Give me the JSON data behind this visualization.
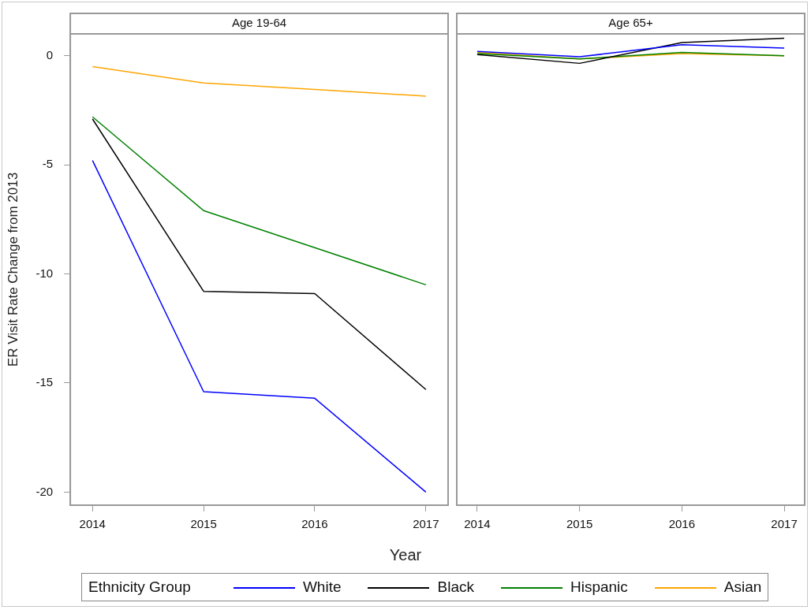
{
  "chart_data": [
    {
      "type": "line",
      "title": "Age 19-64",
      "xlabel": "Year",
      "ylabel": "ER Visit Rate Change from 2013",
      "legend_title": "Ethnicity Group",
      "legend": "bottom",
      "grid": false,
      "marker": "none",
      "x": [
        2014,
        2015,
        2016,
        2017
      ],
      "xlim": [
        2013.8,
        2017.2
      ],
      "xticks": [
        2014,
        2015,
        2016,
        2017
      ],
      "ylim": [
        -20.6,
        1.0
      ],
      "yticks": [
        -20,
        -15,
        -10,
        -5,
        0
      ],
      "series": [
        {
          "name": "White",
          "color": "#0000ff",
          "values": [
            -4.8,
            -15.4,
            -15.7,
            -20.0
          ]
        },
        {
          "name": "Black",
          "color": "#000000",
          "values": [
            -2.9,
            -10.8,
            -10.9,
            -15.3
          ]
        },
        {
          "name": "Hispanic",
          "color": "#008000",
          "values": [
            -2.8,
            -7.1,
            -8.8,
            -10.5
          ]
        },
        {
          "name": "Asian",
          "color": "#ffa500",
          "values": [
            -0.5,
            -1.25,
            -1.55,
            -1.85
          ]
        }
      ]
    },
    {
      "type": "line",
      "title": "Age 65+",
      "legend": "bottom",
      "grid": false,
      "marker": "none",
      "tick_labels": "x",
      "x": [
        2014,
        2015,
        2016,
        2017
      ],
      "xlim": [
        2013.8,
        2017.2
      ],
      "xticks": [
        2014,
        2015,
        2016,
        2017
      ],
      "ylim": [
        -20.6,
        1.0
      ],
      "yticks": [
        -20,
        -15,
        -10,
        -5,
        0
      ],
      "series": [
        {
          "name": "White",
          "color": "#0000ff",
          "values": [
            0.2,
            -0.05,
            0.5,
            0.35
          ]
        },
        {
          "name": "Black",
          "color": "#000000",
          "values": [
            0.05,
            -0.35,
            0.6,
            0.8
          ]
        },
        {
          "name": "Hispanic",
          "color": "#008000",
          "values": [
            0.1,
            -0.15,
            0.15,
            0.0
          ]
        },
        {
          "name": "Asian",
          "color": "#ffa500",
          "values": [
            0.15,
            -0.15,
            0.1,
            0.0
          ]
        }
      ]
    }
  ]
}
